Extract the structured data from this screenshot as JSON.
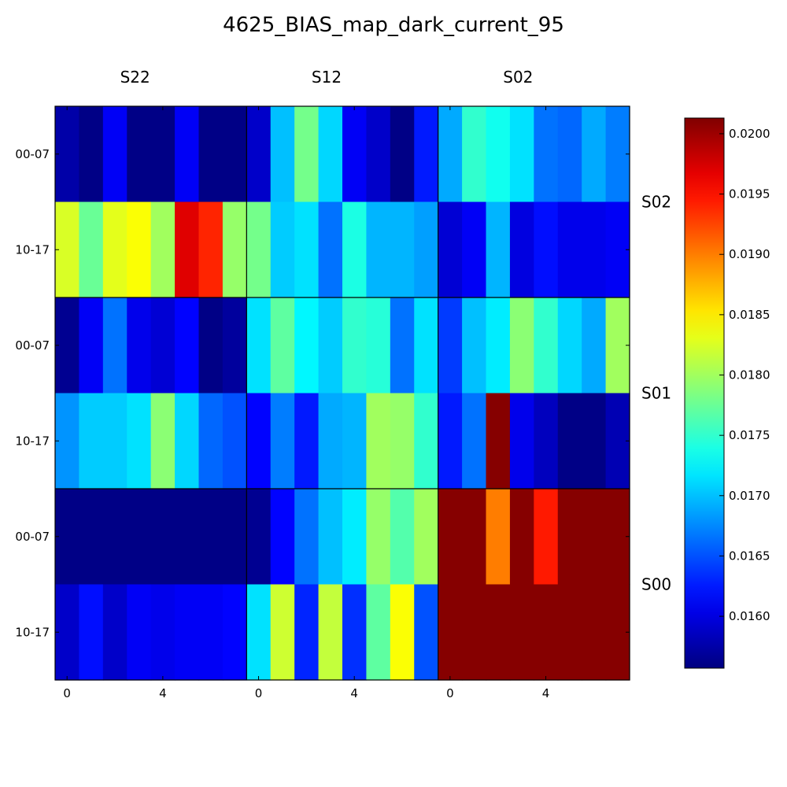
{
  "chart_data": {
    "type": "heatmap",
    "title": "4625_BIAS_map_dark_current_95",
    "colormap": "jet",
    "vmin": 0.01557,
    "vmax": 0.02013,
    "column_groups": [
      "S22",
      "S12",
      "S02"
    ],
    "row_groups": [
      "S02",
      "S01",
      "S00"
    ],
    "row_tick_labels": [
      "00-07",
      "10-17",
      "00-07",
      "10-17",
      "00-07",
      "10-17"
    ],
    "x_tick_labels": [
      {
        "col": 0,
        "label": "0"
      },
      {
        "col": 4,
        "label": "4"
      },
      {
        "col": 8,
        "label": "0"
      },
      {
        "col": 12,
        "label": "4"
      },
      {
        "col": 16,
        "label": "0"
      },
      {
        "col": 20,
        "label": "4"
      }
    ],
    "colorbar_ticks": [
      "0.0160",
      "0.0165",
      "0.0170",
      "0.0175",
      "0.0180",
      "0.0185",
      "0.0190",
      "0.0195",
      "0.0200"
    ],
    "colorbar_tick_values": [
      0.016,
      0.0165,
      0.017,
      0.0175,
      0.018,
      0.0185,
      0.019,
      0.0195,
      0.02
    ],
    "values": [
      [
        0.01575,
        0.0156,
        0.0161,
        0.0156,
        0.0156,
        0.0161,
        0.0156,
        0.0156,
        0.0159,
        0.017,
        0.0178,
        0.0171,
        0.0161,
        0.0159,
        0.0156,
        0.01625,
        0.0169,
        0.0175,
        0.01735,
        0.01715,
        0.01665,
        0.0166,
        0.0169,
        0.0167
      ],
      [
        0.01825,
        0.01775,
        0.0183,
        0.0184,
        0.018,
        0.0197,
        0.0194,
        0.01795,
        0.0178,
        0.01705,
        0.01715,
        0.01665,
        0.0174,
        0.01695,
        0.01695,
        0.01685,
        0.01595,
        0.0161,
        0.01695,
        0.016,
        0.0162,
        0.01605,
        0.01605,
        0.0161
      ],
      [
        0.01565,
        0.0161,
        0.01665,
        0.01605,
        0.01595,
        0.01615,
        0.0156,
        0.0157,
        0.01715,
        0.0177,
        0.01725,
        0.01705,
        0.0175,
        0.01745,
        0.01665,
        0.01715,
        0.0164,
        0.017,
        0.0172,
        0.0179,
        0.0175,
        0.0171,
        0.0169,
        0.018
      ],
      [
        0.0168,
        0.01705,
        0.01705,
        0.01715,
        0.0179,
        0.0171,
        0.0166,
        0.0165,
        0.01615,
        0.0167,
        0.01625,
        0.0169,
        0.01695,
        0.018,
        0.01795,
        0.0175,
        0.01625,
        0.01665,
        0.0201,
        0.01605,
        0.01585,
        0.0156,
        0.0156,
        0.0158
      ],
      [
        0.0156,
        0.0156,
        0.0156,
        0.0156,
        0.0156,
        0.0156,
        0.0156,
        0.0156,
        0.01565,
        0.01615,
        0.01665,
        0.017,
        0.0172,
        0.01795,
        0.01765,
        0.018,
        0.0201,
        0.0201,
        0.019,
        0.0201,
        0.01945,
        0.0201,
        0.0201,
        0.0201
      ],
      [
        0.0159,
        0.0162,
        0.0159,
        0.0161,
        0.01605,
        0.0161,
        0.0161,
        0.01615,
        0.01715,
        0.0182,
        0.0163,
        0.01815,
        0.01635,
        0.0177,
        0.0184,
        0.0165,
        0.0201,
        0.0201,
        0.0201,
        0.0201,
        0.0201,
        0.0201,
        0.0201,
        0.0201
      ]
    ]
  }
}
